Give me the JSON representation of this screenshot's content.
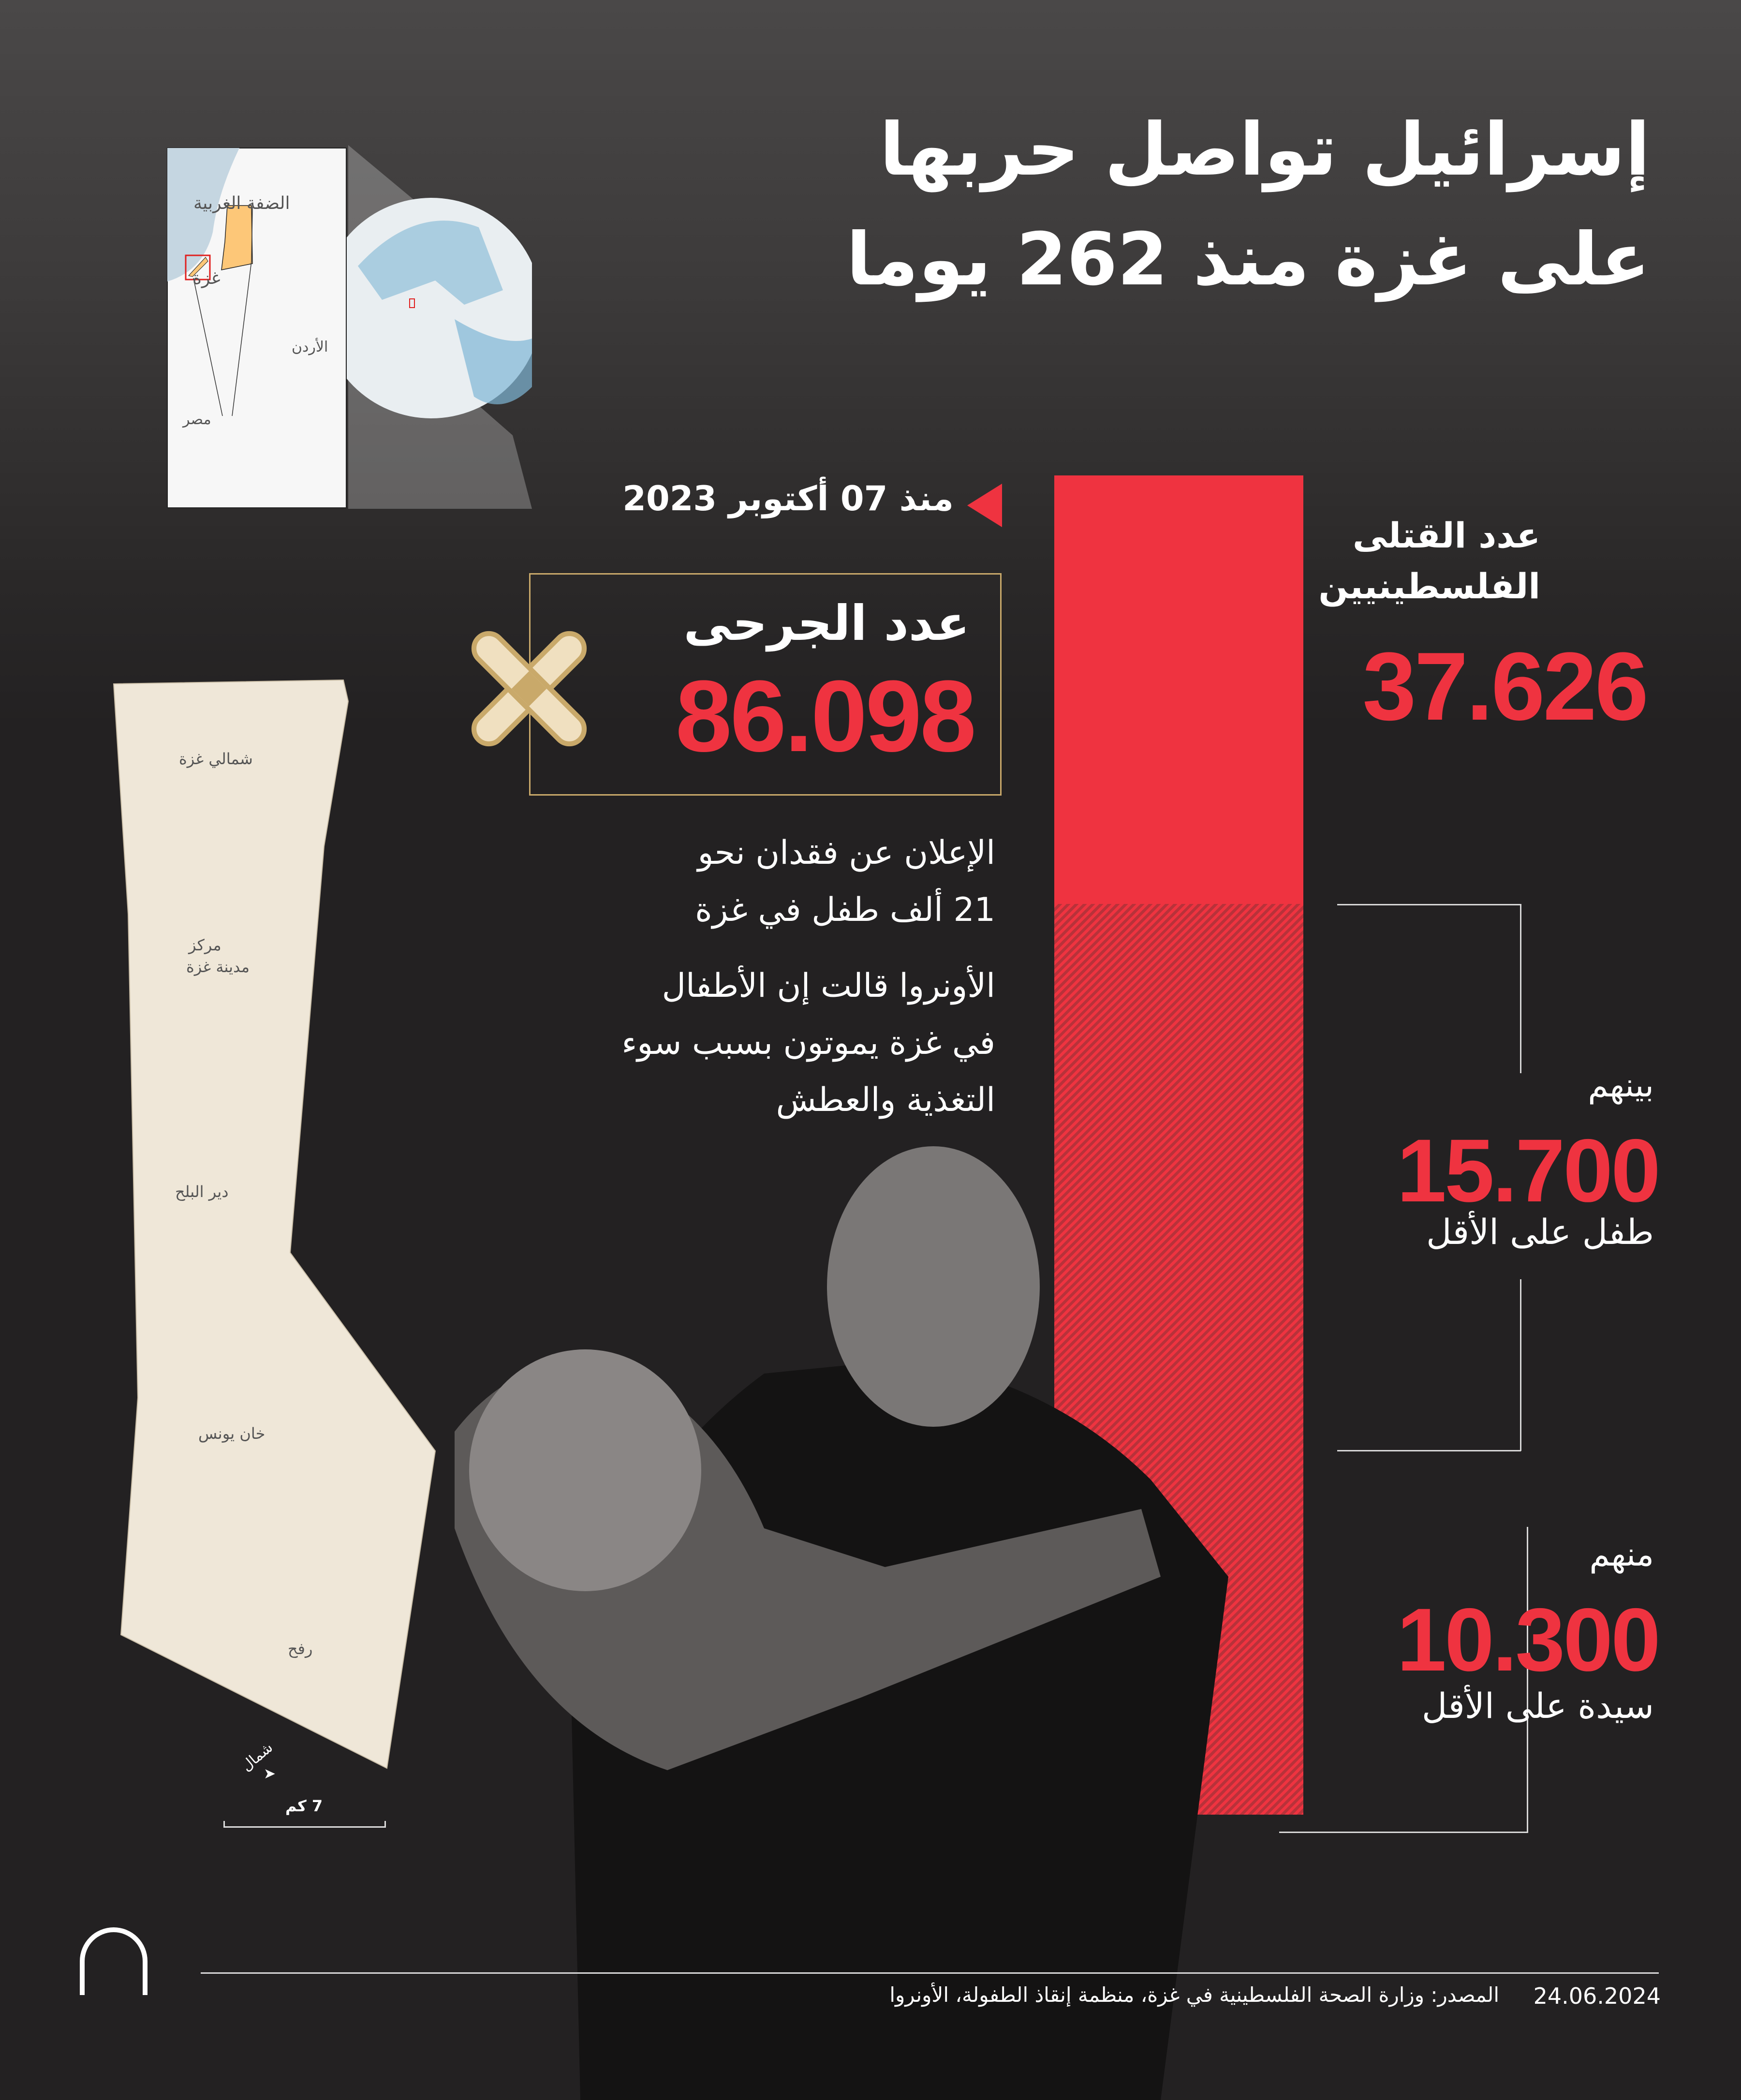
{
  "title": {
    "line1": "إسرائيل تواصل حربها",
    "line2": "على غزة منذ 262 يوما"
  },
  "since": "منذ 07 أكتوبر 2023",
  "injured": {
    "label": "عدد الجرحى",
    "value": "86.098",
    "icon": "bandage-icon"
  },
  "killed": {
    "label_line1": "عدد القتلى",
    "label_line2": "الفلسطينيين",
    "value": "37.626"
  },
  "notes": {
    "p1_line1": "الإعلان عن فقدان نحو",
    "p1_line2": "21 ألف طفل في غزة",
    "p2_line1": "الأونروا قالت إن الأطفال",
    "p2_line2": "في غزة يموتون بسبب سوء",
    "p2_line3": "التغذية والعطش"
  },
  "children": {
    "prefix": "بينهم",
    "value": "15.700",
    "suffix": "طفل على الأقل"
  },
  "women": {
    "prefix": "منهم",
    "value": "10.300",
    "suffix": "سيدة على الأقل"
  },
  "region_map": {
    "west_bank": "الضفة الغربية",
    "gaza": "غزة",
    "jordan": "الأردن",
    "egypt": "مصر"
  },
  "gaza_map": {
    "north": "شمالي غزة",
    "city_line1": "مركز",
    "city_line2": "مدينة غزة",
    "deir": "دير البلح",
    "khan": "خان يونس",
    "rafah": "رفح",
    "north_arrow": "شمال",
    "scale": "7 كم"
  },
  "footer": {
    "date": "24.06.2024",
    "source": "المصدر: وزارة الصحة الفلسطينية في غزة، منظمة إنقاذ الطفولة، الأونروا",
    "logo": "AA"
  },
  "colors": {
    "accent": "#ef3340",
    "background": "#232122",
    "gold": "#c9a96a"
  }
}
